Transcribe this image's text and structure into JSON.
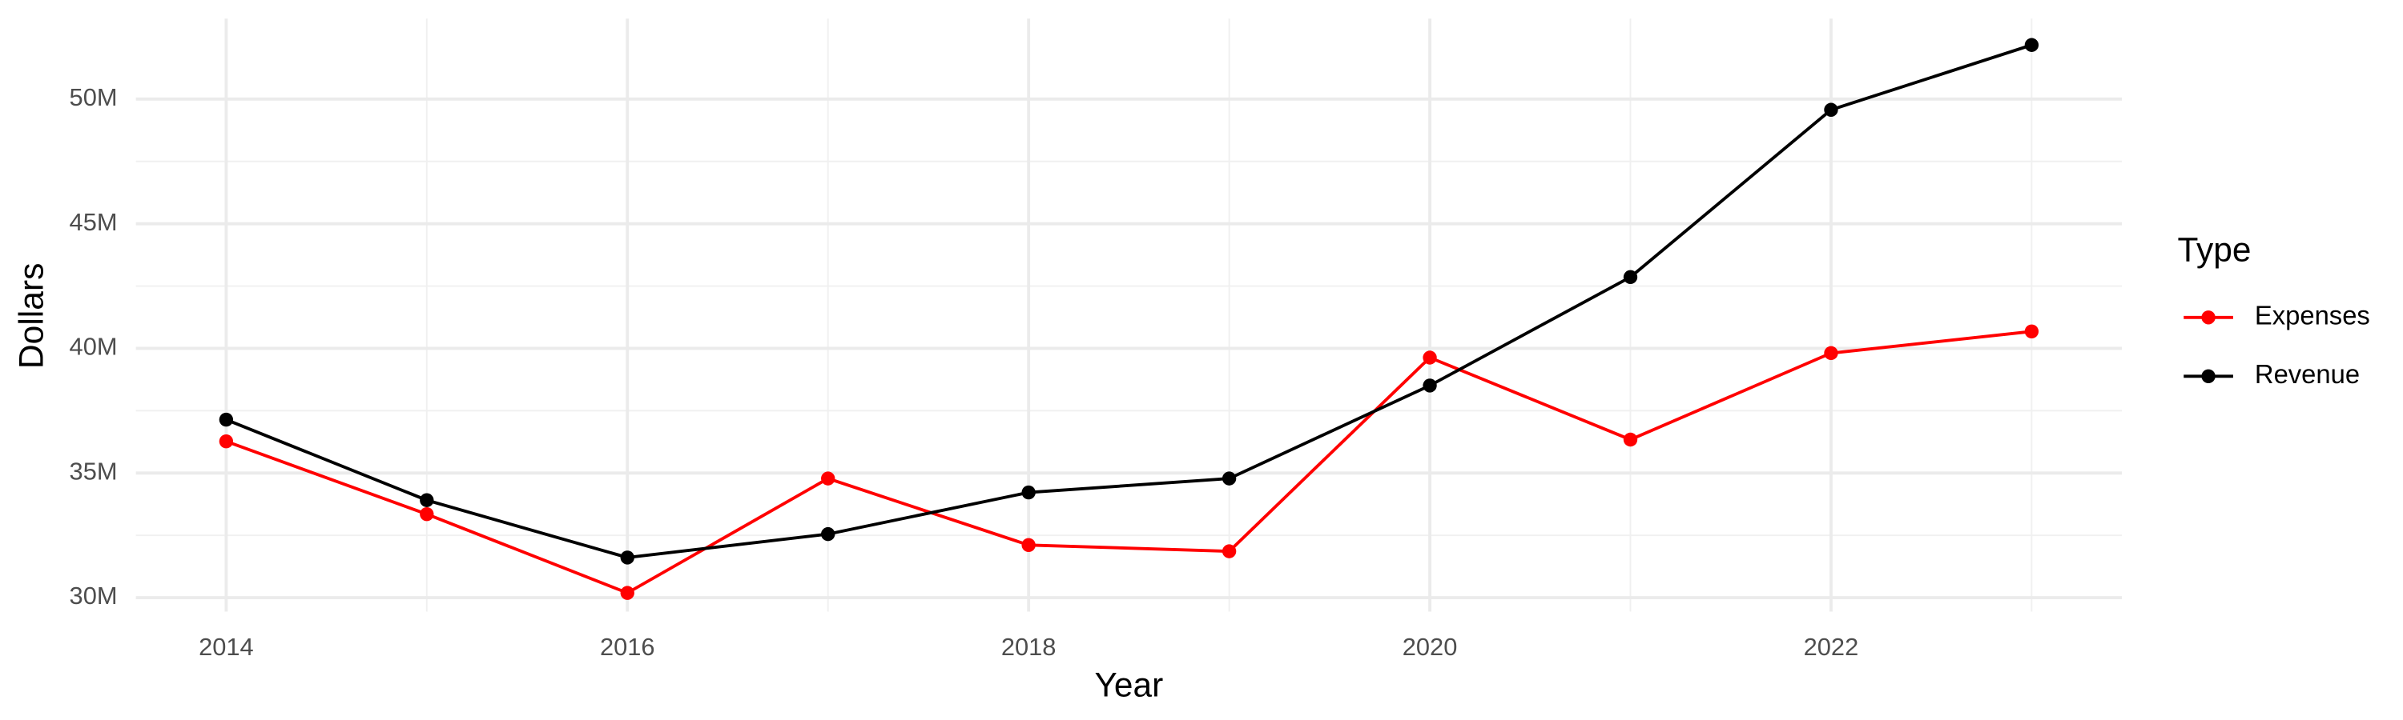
{
  "chart_data": {
    "type": "line",
    "x_label": "Year",
    "y_label": "Dollars",
    "legend_title": "Type",
    "x": [
      2014,
      2015,
      2016,
      2017,
      2018,
      2019,
      2020,
      2021,
      2022,
      2023
    ],
    "series": [
      {
        "name": "Expenses",
        "color": "#ff0000",
        "values": [
          36270000,
          33350000,
          30190000,
          34780000,
          32110000,
          31860000,
          39630000,
          36340000,
          39810000,
          40680000
        ]
      },
      {
        "name": "Revenue",
        "color": "#000000",
        "values": [
          37140000,
          33910000,
          31610000,
          32550000,
          34220000,
          34780000,
          38510000,
          42860000,
          49570000,
          52170000
        ]
      }
    ],
    "xlim": [
      2013.55,
      2023.45
    ],
    "xticks": [
      2014,
      2016,
      2018,
      2020,
      2022
    ],
    "ylim": [
      29440000,
      53230000
    ],
    "yticks": [
      {
        "value": 30000000,
        "label": "30M"
      },
      {
        "value": 35000000,
        "label": "35M"
      },
      {
        "value": 40000000,
        "label": "40M"
      },
      {
        "value": 45000000,
        "label": "45M"
      },
      {
        "value": 50000000,
        "label": "50M"
      }
    ],
    "grid": true,
    "legend_position": "right"
  }
}
